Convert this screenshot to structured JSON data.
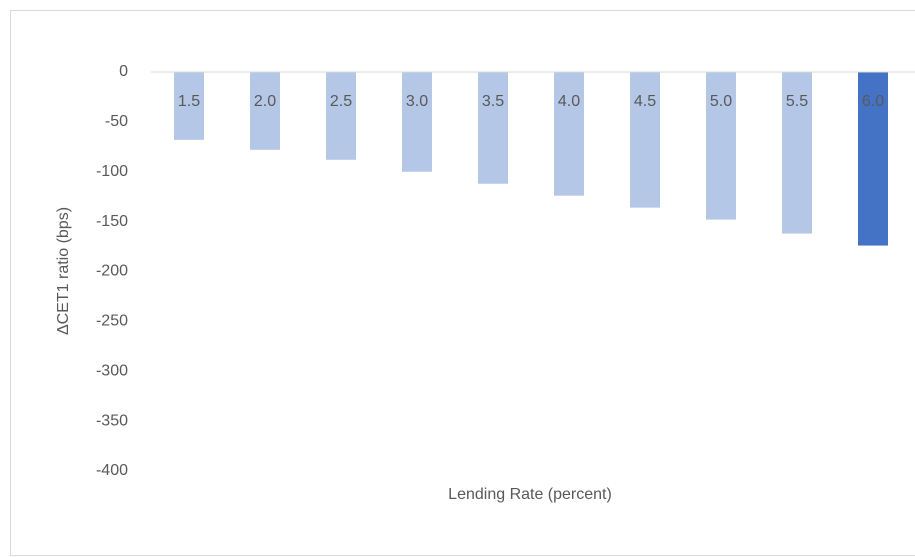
{
  "chart_data": {
    "type": "bar",
    "x_label": "Lending Rate (percent)",
    "y_label": "ΔCET1 ratio (bps)",
    "categories": [
      "1.5",
      "2.0",
      "2.5",
      "3.0",
      "3.5",
      "4.0",
      "4.5",
      "5.0",
      "5.5",
      "6.0"
    ],
    "values": [
      -68,
      -78,
      -88,
      -100,
      -112,
      -124,
      -136,
      -148,
      -162,
      -174
    ],
    "colors": [
      "#b4c7e7",
      "#b4c7e7",
      "#b4c7e7",
      "#b4c7e7",
      "#b4c7e7",
      "#b4c7e7",
      "#b4c7e7",
      "#b4c7e7",
      "#b4c7e7",
      "#4472c4"
    ],
    "ylim": [
      -400,
      0
    ],
    "yticks": [
      0,
      -50,
      -100,
      -150,
      -200,
      -250,
      -300,
      -350,
      -400
    ],
    "grid": false
  }
}
